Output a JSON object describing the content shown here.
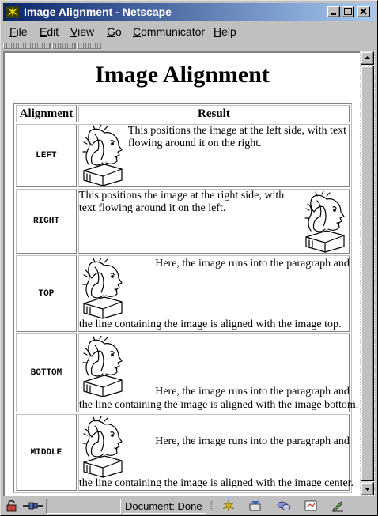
{
  "window": {
    "title": "Image Alignment - Netscape"
  },
  "menu": [
    "File",
    "Edit",
    "View",
    "Go",
    "Communicator",
    "Help"
  ],
  "page": {
    "heading": "Image Alignment",
    "table": {
      "headers": [
        "Alignment",
        "Result"
      ],
      "rows": [
        {
          "label": "LEFT",
          "text": "This positions the image at the left side, with text flowing around it on the right."
        },
        {
          "label": "RIGHT",
          "text": "This positions the image at the right side, with text flowing around it on the left."
        },
        {
          "label": "TOP",
          "text": "Here, the image runs into the paragraph and the line containing the image is aligned with the image top."
        },
        {
          "label": "BOTTOM",
          "text": "Here, the image runs into the paragraph and the line containing the image is aligned with the image bottom."
        },
        {
          "label": "MIDDLE",
          "text": "Here, the image runs into the paragraph and the line containing the image is aligned with the image center."
        }
      ]
    }
  },
  "status": {
    "text": "Document: Done"
  },
  "icons": {
    "app": "netscape-app-icon",
    "image": "sketch-face-image"
  },
  "colors": {
    "titlebar_start": "#0a246a",
    "titlebar_end": "#a6caf0",
    "chrome": "#c0c0c0"
  }
}
